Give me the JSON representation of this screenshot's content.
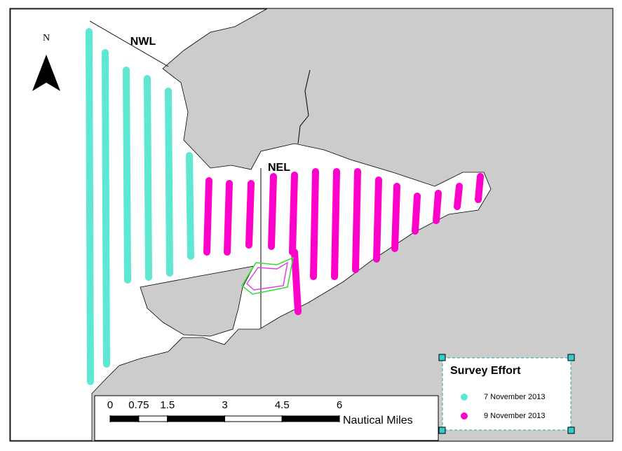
{
  "north_label": "N",
  "regions": [
    {
      "label": "NWL"
    },
    {
      "label": "NEL"
    }
  ],
  "scale_bar": {
    "ticks": [
      0,
      0.75,
      1.5,
      3,
      4.5,
      6
    ],
    "unit": "Nautical Miles"
  },
  "legend": {
    "title": "Survey Effort",
    "items": [
      {
        "label": "7 November 2013",
        "color": "#5ee8d4"
      },
      {
        "label": "9 November 2013",
        "color": "#ff00cc"
      }
    ]
  }
}
